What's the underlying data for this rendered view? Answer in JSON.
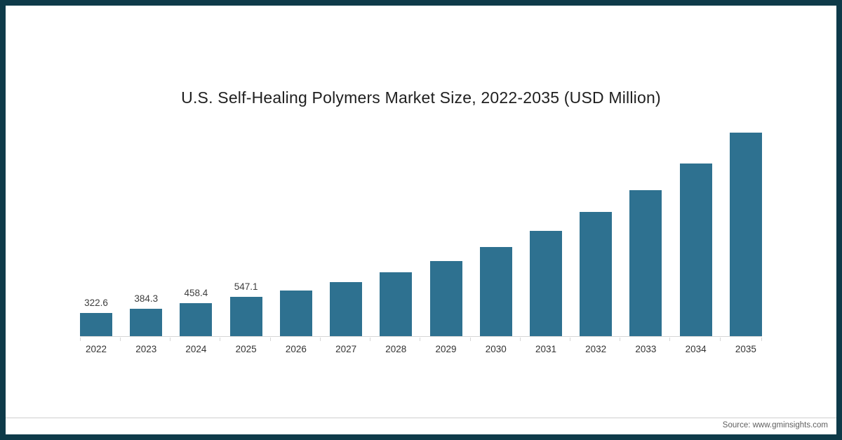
{
  "page": {
    "background": "#ffffff",
    "frame_color": "#0e3a49"
  },
  "chart_data": {
    "type": "bar",
    "title": "U.S. Self-Healing Polymers Market Size, 2022-2035 (USD Million)",
    "xlabel": "",
    "ylabel": "",
    "categories": [
      "2022",
      "2023",
      "2024",
      "2025",
      "2026",
      "2027",
      "2028",
      "2029",
      "2030",
      "2031",
      "2032",
      "2033",
      "2034",
      "2035"
    ],
    "values": [
      322.6,
      384.3,
      458.4,
      547.1,
      645,
      760,
      897,
      1058,
      1249,
      1474,
      1739,
      2052,
      2421,
      2857
    ],
    "data_labels": [
      "322.6",
      "384.3",
      "458.4",
      "547.1"
    ],
    "bar_color": "#2e7190",
    "ylim": [
      0,
      2900
    ],
    "grid": false,
    "legend": false,
    "label_color": "#3d3d3d",
    "axis_line_color": "#d6d6d6"
  },
  "footer": {
    "source_label": "Source: www.gminsights.com"
  }
}
